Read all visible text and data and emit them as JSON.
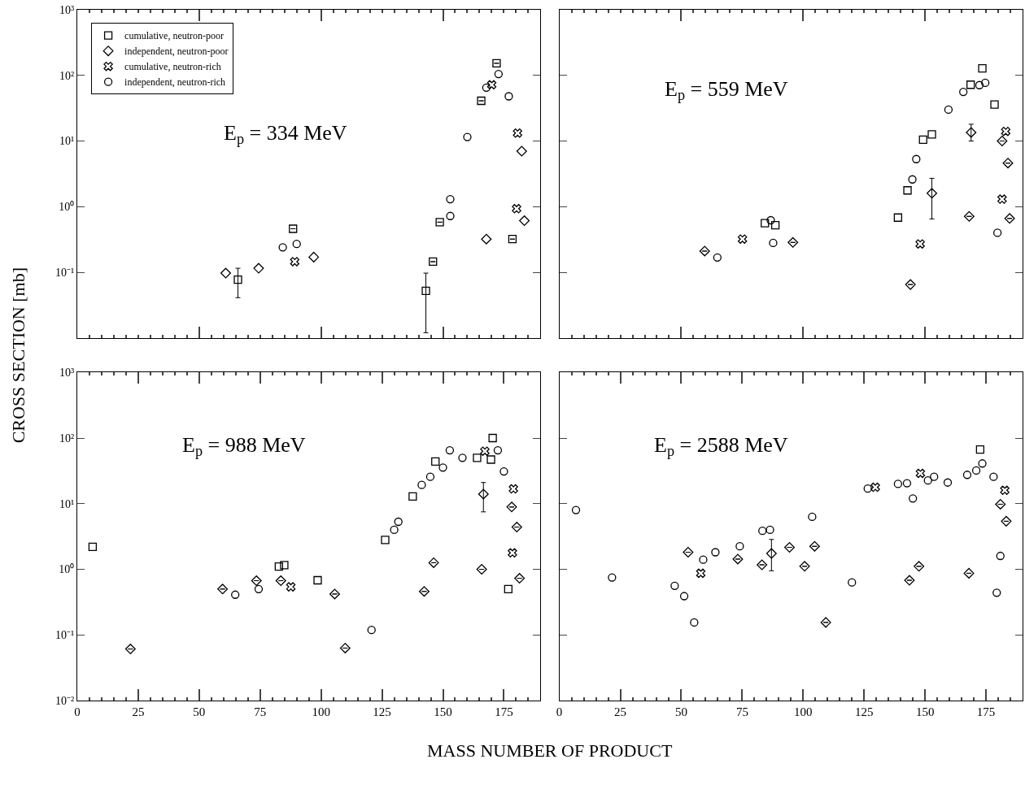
{
  "chart_data": [
    {
      "type": "scatter",
      "annotations": [
        "E$_{p}$ = 334 MeV"
      ],
      "ylabel": "CROSS SECTION [mb]",
      "log": "y",
      "grid": false,
      "legend": "top left",
      "tick_labels": "y",
      "xlim": [
        0,
        190
      ],
      "xticks": [
        {
          "value": 50,
          "label": null
        },
        {
          "value": 100,
          "label": null
        },
        {
          "value": 150,
          "label": null
        }
      ],
      "ylim": [
        0.01,
        1000
      ],
      "yticks": [
        {
          "value": 1000,
          "label": "10³"
        },
        {
          "value": 100,
          "label": "10²"
        },
        {
          "value": 10,
          "label": "10¹"
        },
        {
          "value": 1,
          "label": "10⁰"
        },
        {
          "value": 0.1,
          "label": "10⁻¹"
        }
      ],
      "series": [
        {
          "name": "cumulative, neutron-poor",
          "marker": "square",
          "color": "#000000",
          "x": [
            65.9,
            88.5,
            143,
            145.9,
            148.7,
            165.7,
            172,
            178.5
          ],
          "values": [
            0.077,
            0.46,
            0.052,
            0.145,
            0.58,
            41,
            153,
            0.32
          ],
          "errors": [
            [
              0.041,
              0.115
            ],
            null,
            [
              0.012,
              0.097
            ],
            null,
            null,
            null,
            null,
            null
          ]
        },
        {
          "name": "independent, neutron-poor",
          "marker": "diamond",
          "color": "#000000",
          "x": [
            60.9,
            74.4,
            97,
            182.3,
            183.4,
            167.8
          ],
          "values": [
            0.097,
            0.115,
            0.17,
            7,
            0.61,
            0.32
          ]
        },
        {
          "name": "cumulative, neutron-rich",
          "marker": "cross",
          "color": "#000000",
          "x": [
            89.2,
            170,
            180.6,
            180.2
          ],
          "values": [
            0.145,
            72,
            13.2,
            0.93
          ]
        },
        {
          "name": "independent, neutron-rich",
          "marker": "circle",
          "color": "#000000",
          "x": [
            84.3,
            90,
            153,
            153,
            160,
            167.8,
            172.8,
            177
          ],
          "values": [
            0.24,
            0.27,
            0.72,
            1.3,
            11.5,
            65,
            105,
            48
          ]
        }
      ]
    },
    {
      "type": "scatter",
      "annotations": [
        "E$_{p}$ = 559 MeV"
      ],
      "log": "y",
      "grid": false,
      "tick_labels": false,
      "xlim": [
        0,
        190
      ],
      "xticks": [
        {
          "value": 50,
          "label": null
        },
        {
          "value": 100,
          "label": null
        },
        {
          "value": 150,
          "label": null
        }
      ],
      "ylim": [
        0.01,
        1000
      ],
      "yticks": [
        {
          "value": 100,
          "label": null
        },
        {
          "value": 10,
          "label": null
        },
        {
          "value": 1,
          "label": null
        },
        {
          "value": 0.1,
          "label": null
        }
      ],
      "series": [
        {
          "marker": "square",
          "color": "#000000",
          "x": [
            84.3,
            88.6,
            138.9,
            142.8,
            149.2,
            152.8,
            168.7,
            173.5,
            178.5
          ],
          "values": [
            0.56,
            0.52,
            0.68,
            1.77,
            10.5,
            12.6,
            72,
            128,
            36
          ]
        },
        {
          "marker": "diamond",
          "color": "#000000",
          "x": [
            59.6,
            95.8,
            144,
            152.8,
            168.9,
            168.1,
            181.6,
            184,
            184.7
          ],
          "values": [
            0.21,
            0.285,
            0.065,
            1.6,
            13.5,
            0.71,
            10,
            4.6,
            0.66
          ],
          "errors": [
            null,
            null,
            null,
            [
              0.65,
              2.7
            ],
            [
              10,
              18
            ],
            null,
            null,
            null,
            null
          ]
        },
        {
          "marker": "cross",
          "color": "#000000",
          "x": [
            75.1,
            148,
            183.1,
            181.6
          ],
          "values": [
            0.32,
            0.27,
            14,
            1.3
          ]
        },
        {
          "marker": "circle",
          "color": "#000000",
          "x": [
            64.8,
            86.7,
            87.7,
            144.8,
            146.4,
            159.6,
            165.7,
            172.3,
            174.7,
            179.7
          ],
          "values": [
            0.168,
            0.62,
            0.28,
            2.6,
            5.3,
            30,
            56,
            71,
            77,
            0.4
          ]
        }
      ]
    },
    {
      "type": "scatter",
      "annotations": [
        "E$_{p}$ = 988 MeV"
      ],
      "xlabel": "MASS NUMBER OF PRODUCT",
      "log": "y",
      "grid": false,
      "xlim": [
        0,
        190
      ],
      "xticks": [
        0,
        25,
        50,
        75,
        100,
        125,
        150,
        175
      ],
      "ylim": [
        0.01,
        1000
      ],
      "yticks": [
        {
          "value": 1000,
          "label": "10³"
        },
        {
          "value": 100,
          "label": "10²"
        },
        {
          "value": 10,
          "label": "10¹"
        },
        {
          "value": 1,
          "label": "10⁰"
        },
        {
          "value": 0.1,
          "label": "10⁻¹"
        },
        {
          "value": 0.01,
          "label": "10⁻²"
        }
      ],
      "series": [
        {
          "marker": "square",
          "color": "#000000",
          "x": [
            6.3,
            82.7,
            84.9,
            98.6,
            126.3,
            137.6,
            146.9,
            164,
            170.4,
            169.7,
            176.8
          ],
          "values": [
            2.2,
            1.1,
            1.16,
            0.68,
            2.8,
            12.9,
            44,
            50,
            100,
            47,
            0.5
          ]
        },
        {
          "marker": "diamond",
          "color": "#000000",
          "x": [
            21.8,
            59.6,
            73.5,
            83.5,
            105.6,
            109.9,
            166.6,
            178.2,
            180.3,
            165.9,
            142.3,
            146.2,
            181.4
          ],
          "values": [
            0.061,
            0.5,
            0.67,
            0.67,
            0.42,
            0.063,
            14,
            8.9,
            4.4,
            1.0,
            0.46,
            1.26,
            0.73
          ],
          "errors": [
            null,
            null,
            null,
            null,
            null,
            null,
            [
              7.5,
              21
            ],
            null,
            null,
            null,
            null,
            null,
            null
          ]
        },
        {
          "marker": "cross",
          "color": "#000000",
          "x": [
            87.6,
            167.2,
            178.9,
            178.5
          ],
          "values": [
            0.54,
            63,
            16.8,
            1.78
          ]
        },
        {
          "marker": "circle",
          "color": "#000000",
          "x": [
            64.8,
            74.4,
            120.7,
            130,
            131.7,
            141.3,
            144.8,
            150,
            152.8,
            158,
            172.5,
            175
          ],
          "values": [
            0.41,
            0.5,
            0.119,
            4.0,
            5.3,
            19.3,
            25.7,
            35.5,
            65,
            50,
            65,
            31
          ]
        }
      ]
    },
    {
      "type": "scatter",
      "annotations": [
        "E$_{p}$ = 2588 MeV"
      ],
      "log": "y",
      "grid": false,
      "tick_labels": "x",
      "xlim": [
        0,
        190
      ],
      "xticks": [
        0,
        25,
        50,
        75,
        100,
        125,
        150,
        175
      ],
      "ylim": [
        0.01,
        1000
      ],
      "yticks": [
        {
          "value": 100,
          "label": null
        },
        {
          "value": 10,
          "label": null
        },
        {
          "value": 1,
          "label": null
        },
        {
          "value": 0.1,
          "label": null
        }
      ],
      "series": [
        {
          "marker": "square",
          "color": "#000000",
          "x": [
            172.6
          ],
          "values": [
            67
          ]
        },
        {
          "marker": "diamond",
          "color": "#000000",
          "x": [
            52.8,
            73.2,
            83.1,
            87,
            94.4,
            100.6,
            104.7,
            109.3,
            183.3,
            180.9,
            143.6,
            147.5,
            168
          ],
          "values": [
            1.82,
            1.43,
            1.17,
            1.74,
            2.16,
            1.11,
            2.24,
            0.155,
            5.4,
            9.8,
            0.68,
            1.11,
            0.87
          ],
          "errors": [
            null,
            null,
            null,
            [
              0.95,
              2.85
            ],
            null,
            null,
            null,
            null,
            null,
            null,
            null,
            null,
            null
          ]
        },
        {
          "marker": "cross",
          "color": "#000000",
          "x": [
            58,
            129.6,
            148.1,
            182.7
          ],
          "values": [
            0.87,
            17.8,
            29,
            16
          ]
        },
        {
          "marker": "circle",
          "color": "#000000",
          "x": [
            6.8,
            21.6,
            47.3,
            51.2,
            55.3,
            59,
            64,
            74,
            83.3,
            86.4,
            103.7,
            120,
            126.5,
            138.9,
            142.6,
            145,
            151.2,
            153.7,
            159.3,
            167.3,
            171,
            173.5,
            178.1,
            180.9,
            179.4
          ],
          "values": [
            8.0,
            0.75,
            0.56,
            0.39,
            0.155,
            1.4,
            1.82,
            2.24,
            3.85,
            4.0,
            6.3,
            0.63,
            17,
            20,
            20.5,
            12,
            22.6,
            25.7,
            21,
            27.5,
            32,
            41,
            25.7,
            1.6,
            0.44
          ]
        }
      ]
    }
  ]
}
